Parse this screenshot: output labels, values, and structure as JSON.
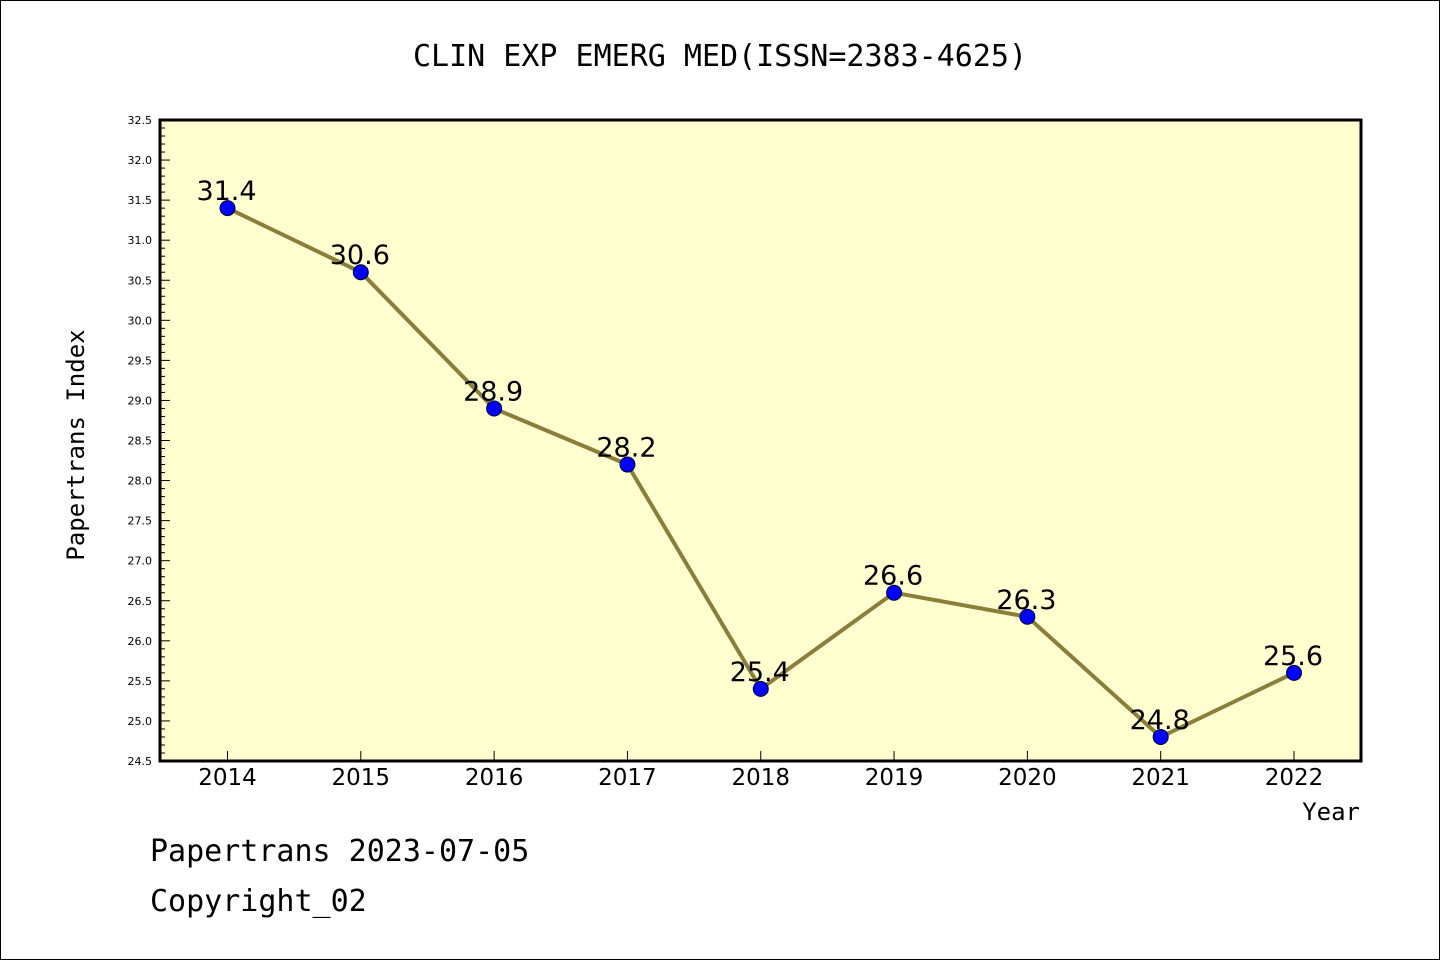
{
  "chart_data": {
    "type": "line",
    "title": "CLIN EXP EMERG MED(ISSN=2383-4625)",
    "xlabel": "Year",
    "ylabel": "Papertrans Index",
    "categories": [
      "2014",
      "2015",
      "2016",
      "2017",
      "2018",
      "2019",
      "2020",
      "2021",
      "2022"
    ],
    "series": [
      {
        "values": [
          31.4,
          30.6,
          28.9,
          28.2,
          25.4,
          26.6,
          26.3,
          24.8,
          25.6
        ]
      }
    ],
    "data_labels": [
      "31.4",
      "30.6",
      "28.9",
      "28.2",
      "25.4",
      "26.6",
      "26.3",
      "24.8",
      "25.6"
    ],
    "ylim": [
      24.5,
      32.5
    ],
    "yticks": [
      "24.5",
      "25.0",
      "25.5",
      "26.0",
      "26.5",
      "27.0",
      "27.5",
      "28.0",
      "28.5",
      "29.0",
      "29.5",
      "30.0",
      "30.5",
      "31.0",
      "31.5",
      "32.0",
      "32.5"
    ],
    "grid": false,
    "colors": {
      "plot_bg": "#ffffd0",
      "line": "#8b7d3a",
      "marker": "#0000ff"
    }
  },
  "footer": {
    "line1": "Papertrans 2023-07-05",
    "line2": "Copyright_02"
  }
}
